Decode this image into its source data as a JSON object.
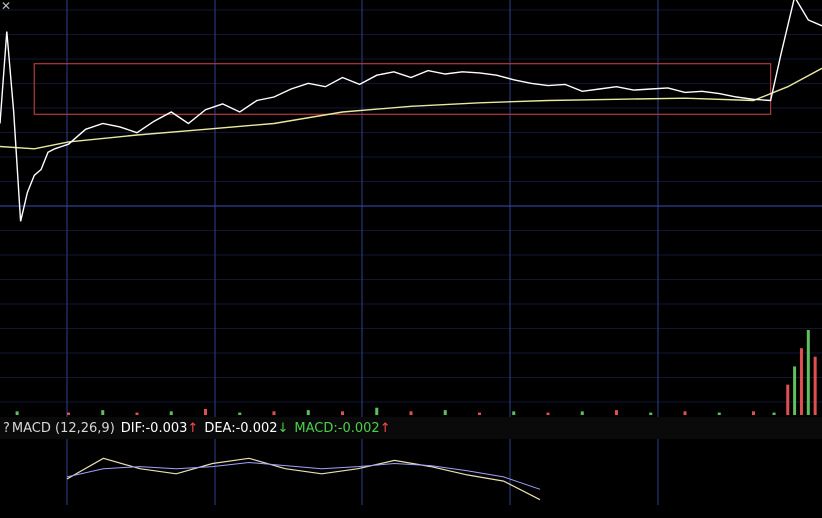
{
  "corner_icon": "close-icon",
  "indicator_bar": {
    "help": "?",
    "name": "MACD (12,26,9)",
    "dif_label": "DIF:",
    "dif_value": "-0.003",
    "dif_arrow": "↑",
    "dea_label": "DEA:",
    "dea_value": "-0.002",
    "dea_arrow": "↓",
    "macd_label": "MACD:",
    "macd_value": "-0.002",
    "macd_arrow": "↑"
  },
  "colors": {
    "background": "#000000",
    "grid": "#2f3f8f",
    "price_line": "#ffffff",
    "average_line": "#e8e8a0",
    "highlight_box": "#b23a3a",
    "volume_up": "#e05050",
    "volume_down": "#60c060"
  },
  "chart_data": {
    "type": "line",
    "grid": true,
    "x_range": [
      0,
      240
    ],
    "price_y_range": [
      -1,
      1
    ],
    "series": [
      {
        "role": "price",
        "x": [
          0,
          2,
          4,
          6,
          8,
          10,
          12,
          14,
          16,
          18,
          20,
          25,
          30,
          35,
          40,
          45,
          50,
          55,
          60,
          65,
          70,
          75,
          80,
          85,
          90,
          95,
          100,
          105,
          110,
          115,
          120,
          125,
          130,
          135,
          140,
          145,
          150,
          155,
          160,
          165,
          170,
          175,
          180,
          185,
          190,
          195,
          200,
          205,
          210,
          215,
          220,
          225,
          228,
          232,
          236,
          240
        ],
        "y": [
          0.1,
          0.9,
          0.2,
          -0.75,
          -0.5,
          -0.35,
          -0.3,
          -0.15,
          -0.12,
          -0.1,
          -0.08,
          0.05,
          0.1,
          0.07,
          0.02,
          0.12,
          0.2,
          0.1,
          0.22,
          0.27,
          0.2,
          0.3,
          0.33,
          0.4,
          0.45,
          0.42,
          0.5,
          0.44,
          0.52,
          0.55,
          0.5,
          0.56,
          0.53,
          0.55,
          0.54,
          0.52,
          0.48,
          0.45,
          0.43,
          0.44,
          0.38,
          0.4,
          0.42,
          0.39,
          0.4,
          0.41,
          0.37,
          0.38,
          0.36,
          0.33,
          0.31,
          0.3,
          0.7,
          1.2,
          1.0,
          0.95
        ]
      },
      {
        "role": "average",
        "x": [
          0,
          10,
          20,
          40,
          60,
          80,
          100,
          120,
          140,
          160,
          180,
          200,
          220,
          230,
          240
        ],
        "y": [
          -0.1,
          -0.12,
          -0.06,
          0.0,
          0.05,
          0.1,
          0.2,
          0.25,
          0.28,
          0.3,
          0.31,
          0.32,
          0.3,
          0.42,
          0.58
        ]
      }
    ],
    "highlight_range": {
      "x": [
        10,
        225
      ],
      "y": [
        0.18,
        0.62
      ]
    },
    "volume": [
      {
        "x": 5,
        "v": 3
      },
      {
        "x": 20,
        "v": 2
      },
      {
        "x": 30,
        "v": 4
      },
      {
        "x": 40,
        "v": 2
      },
      {
        "x": 50,
        "v": 3
      },
      {
        "x": 60,
        "v": 5
      },
      {
        "x": 70,
        "v": 2
      },
      {
        "x": 80,
        "v": 3
      },
      {
        "x": 90,
        "v": 4
      },
      {
        "x": 100,
        "v": 3
      },
      {
        "x": 110,
        "v": 6
      },
      {
        "x": 120,
        "v": 3
      },
      {
        "x": 130,
        "v": 4
      },
      {
        "x": 140,
        "v": 2
      },
      {
        "x": 150,
        "v": 3
      },
      {
        "x": 160,
        "v": 2
      },
      {
        "x": 170,
        "v": 3
      },
      {
        "x": 180,
        "v": 4
      },
      {
        "x": 190,
        "v": 2
      },
      {
        "x": 200,
        "v": 3
      },
      {
        "x": 210,
        "v": 2
      },
      {
        "x": 220,
        "v": 3
      },
      {
        "x": 226,
        "v": 2
      },
      {
        "x": 230,
        "v": 25
      },
      {
        "x": 232,
        "v": 40
      },
      {
        "x": 234,
        "v": 55
      },
      {
        "x": 236,
        "v": 70
      },
      {
        "x": 238,
        "v": 48
      }
    ],
    "macd_dif": [
      -0.001,
      0.001,
      0.0,
      -0.0005,
      0.0005,
      0.001,
      0.0,
      -0.0005,
      0.0,
      0.0008,
      0.0002,
      -0.0006,
      -0.0012,
      -0.003
    ],
    "macd_dea": [
      -0.0008,
      0.0,
      0.0002,
      0.0,
      0.0002,
      0.0006,
      0.0003,
      0.0,
      0.0002,
      0.0005,
      0.0003,
      -0.0002,
      -0.0008,
      -0.002
    ]
  }
}
